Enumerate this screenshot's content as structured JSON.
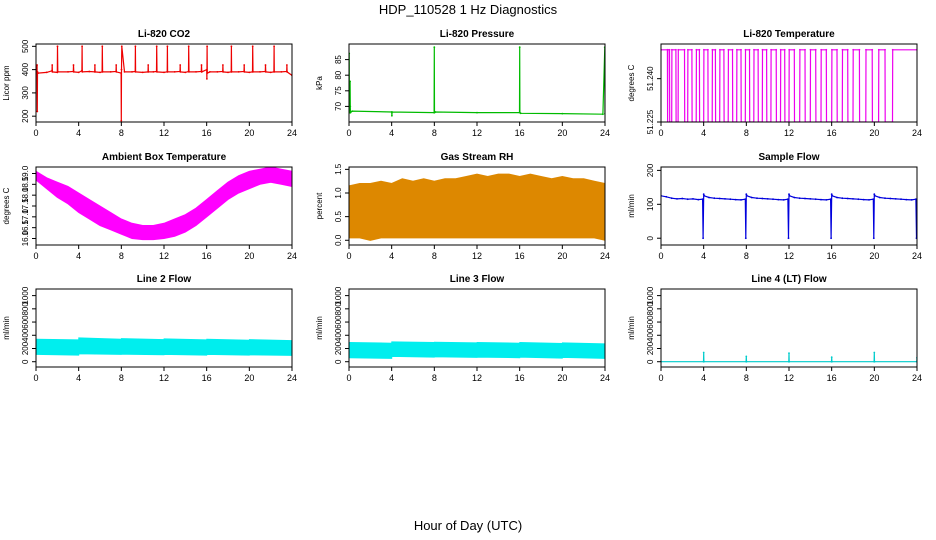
{
  "title": "HDP_110528 1 Hz Diagnostics",
  "xlabel": "Hour of Day (UTC)",
  "chart_data": [
    {
      "type": "line",
      "title": "Li-820 CO2",
      "ylabel": "Licor ppm",
      "color": "#ee0000",
      "xlim": [
        0,
        24
      ],
      "xticks": [
        0,
        4,
        8,
        12,
        16,
        20,
        24
      ],
      "ylim": [
        175,
        510
      ],
      "yticks": [
        200,
        300,
        400,
        500
      ],
      "series": [
        {
          "x": [
            0,
            0.1,
            0.12,
            0.14,
            0.2,
            1,
            1.5,
            1.52,
            1.54,
            2,
            2.02,
            2.04,
            3,
            3.5,
            3.52,
            3.54,
            4,
            4.3,
            4.32,
            4.34,
            5,
            5.5,
            5.52,
            5.54,
            6,
            6.2,
            6.22,
            6.24,
            7,
            7.5,
            7.52,
            7.54,
            7.98,
            8,
            8.02,
            8.04,
            8.3,
            9,
            9.3,
            9.32,
            9.34,
            10,
            10.5,
            10.52,
            10.54,
            11,
            11.3,
            11.32,
            11.34,
            12,
            12.3,
            12.32,
            12.34,
            13,
            13.5,
            13.52,
            13.54,
            14,
            14.3,
            14.32,
            14.34,
            15,
            15.5,
            15.52,
            15.54,
            16,
            16.02,
            16.04,
            16.06,
            16.3,
            17,
            17.5,
            17.52,
            17.54,
            18,
            18.3,
            18.32,
            18.34,
            19,
            19.5,
            19.52,
            19.54,
            20,
            20.3,
            20.32,
            20.34,
            21,
            21.5,
            21.52,
            21.54,
            22,
            22.3,
            22.32,
            22.34,
            23,
            23.5,
            23.52,
            23.54,
            24
          ],
          "y": [
            390,
            420,
            220,
            390,
            385,
            388,
            395,
            420,
            390,
            388,
            500,
            390,
            390,
            392,
            420,
            390,
            388,
            395,
            500,
            390,
            392,
            390,
            420,
            390,
            388,
            390,
            500,
            390,
            390,
            392,
            420,
            390,
            385,
            180,
            400,
            500,
            390,
            390,
            392,
            500,
            390,
            388,
            390,
            420,
            390,
            390,
            392,
            500,
            390,
            388,
            390,
            500,
            390,
            390,
            392,
            420,
            390,
            388,
            392,
            500,
            390,
            390,
            392,
            420,
            390,
            400,
            360,
            500,
            385,
            390,
            390,
            392,
            420,
            390,
            388,
            390,
            500,
            390,
            390,
            392,
            420,
            390,
            388,
            390,
            500,
            390,
            390,
            392,
            420,
            390,
            388,
            390,
            500,
            390,
            390,
            392,
            420,
            390,
            375
          ]
        }
      ]
    },
    {
      "type": "line",
      "title": "Li-820 Pressure",
      "ylabel": "kPa",
      "color": "#00bb00",
      "xlim": [
        0,
        24
      ],
      "xticks": [
        0,
        4,
        8,
        12,
        16,
        20,
        24
      ],
      "ylim": [
        65,
        90
      ],
      "yticks": [
        70,
        75,
        80,
        85
      ],
      "series": [
        {
          "x": [
            0,
            0.02,
            0.04,
            0.06,
            0.1,
            0.12,
            0.14,
            0.3,
            4,
            4.02,
            4.04,
            7.98,
            8,
            8.02,
            8.1,
            12,
            15.98,
            16,
            16.02,
            16.1,
            20,
            23.8,
            23.98,
            24
          ],
          "y": [
            68,
            87,
            68,
            68,
            78,
            70,
            68,
            68.5,
            68.2,
            67,
            68.2,
            68,
            89,
            68,
            68.2,
            68,
            68,
            89,
            68,
            67.8,
            67.7,
            67.5,
            89,
            67.6
          ]
        }
      ]
    },
    {
      "type": "line",
      "title": "Li-820 Temperature",
      "ylabel": "degrees C",
      "color": "#ee00ee",
      "xlim": [
        0,
        24
      ],
      "xticks": [
        0,
        4,
        8,
        12,
        16,
        20,
        24
      ],
      "ylim": [
        51.225,
        51.252
      ],
      "yticks": [
        51.225,
        51.24
      ],
      "ytick_labels": [
        "51.225",
        "51.240"
      ],
      "series": [
        {
          "x": [
            0,
            0.6,
            0.62,
            0.64,
            0.8,
            0.82,
            1,
            1.02,
            1.4,
            1.42,
            1.6,
            1.62,
            2.2,
            2.22,
            2.5,
            2.52,
            2.9,
            2.92,
            3.3,
            3.32,
            3.6,
            3.62,
            4,
            4.02,
            4.4,
            4.42,
            4.8,
            4.82,
            5.1,
            5.12,
            5.5,
            5.52,
            5.9,
            5.92,
            6.3,
            6.32,
            6.7,
            6.72,
            7.1,
            7.12,
            7.5,
            7.52,
            7.9,
            7.92,
            8.3,
            8.32,
            8.7,
            8.72,
            9.1,
            9.12,
            9.5,
            9.52,
            9.9,
            9.92,
            10.3,
            10.32,
            10.8,
            10.82,
            11.2,
            11.22,
            11.6,
            11.62,
            12,
            12.02,
            12.5,
            12.52,
            13,
            13.02,
            13.5,
            13.52,
            14,
            14.02,
            14.5,
            14.52,
            15,
            15.02,
            15.5,
            15.52,
            16,
            16.02,
            16.5,
            16.52,
            17,
            17.02,
            17.5,
            17.52,
            18,
            18.02,
            18.6,
            18.62,
            19.2,
            19.22,
            19.8,
            19.82,
            20.4,
            20.42,
            21,
            21.02,
            21.7,
            21.72,
            24
          ],
          "y": [
            51.25,
            51.25,
            51.225,
            51.25,
            51.25,
            51.225,
            51.225,
            51.25,
            51.25,
            51.225,
            51.225,
            51.25,
            51.25,
            51.225,
            51.225,
            51.25,
            51.25,
            51.225,
            51.225,
            51.25,
            51.25,
            51.225,
            51.225,
            51.25,
            51.25,
            51.225,
            51.225,
            51.25,
            51.25,
            51.225,
            51.225,
            51.25,
            51.25,
            51.225,
            51.225,
            51.25,
            51.25,
            51.225,
            51.225,
            51.25,
            51.25,
            51.225,
            51.225,
            51.25,
            51.25,
            51.225,
            51.225,
            51.25,
            51.25,
            51.225,
            51.225,
            51.25,
            51.25,
            51.225,
            51.225,
            51.25,
            51.25,
            51.225,
            51.225,
            51.25,
            51.25,
            51.225,
            51.225,
            51.25,
            51.25,
            51.225,
            51.225,
            51.25,
            51.25,
            51.225,
            51.225,
            51.25,
            51.25,
            51.225,
            51.225,
            51.25,
            51.25,
            51.225,
            51.225,
            51.25,
            51.25,
            51.225,
            51.225,
            51.25,
            51.25,
            51.225,
            51.225,
            51.25,
            51.25,
            51.225,
            51.225,
            51.25,
            51.25,
            51.225,
            51.225,
            51.25,
            51.25,
            51.225,
            51.225,
            51.25,
            51.25
          ]
        }
      ]
    },
    {
      "type": "area",
      "title": "Ambient Box Temperature",
      "ylabel": "degrees C",
      "color": "#ff00ff",
      "xlim": [
        0,
        24
      ],
      "xticks": [
        0,
        4,
        8,
        12,
        16,
        20,
        24
      ],
      "ylim": [
        15.7,
        19.3
      ],
      "yticks": [
        16.0,
        16.5,
        17.0,
        17.5,
        18.0,
        18.5,
        19.0
      ],
      "ytick_labels": [
        "16.0",
        "16.5",
        "17.0",
        "17.5",
        "18.0",
        "18.5",
        "19.0"
      ],
      "series": [
        {
          "x": [
            0,
            1,
            2,
            3,
            4,
            5,
            6,
            7,
            8,
            9,
            10,
            11,
            12,
            13,
            14,
            15,
            16,
            17,
            18,
            19,
            20,
            21,
            22,
            23,
            24
          ],
          "upper": [
            19.1,
            18.8,
            18.6,
            18.4,
            18.1,
            17.8,
            17.5,
            17.2,
            16.9,
            16.7,
            16.6,
            16.6,
            16.7,
            16.9,
            17.1,
            17.4,
            17.8,
            18.2,
            18.6,
            18.9,
            19.1,
            19.2,
            19.3,
            19.2,
            19.1
          ],
          "lower": [
            18.7,
            18.3,
            17.9,
            17.6,
            17.2,
            16.9,
            16.6,
            16.4,
            16.2,
            16.0,
            15.95,
            15.95,
            16.0,
            16.1,
            16.3,
            16.6,
            17.0,
            17.4,
            17.8,
            18.1,
            18.3,
            18.5,
            18.6,
            18.5,
            18.4
          ]
        }
      ]
    },
    {
      "type": "area",
      "title": "Gas Stream RH",
      "ylabel": "percent",
      "color": "#dd8800",
      "xlim": [
        0,
        24
      ],
      "xticks": [
        0,
        4,
        8,
        12,
        16,
        20,
        24
      ],
      "ylim": [
        -0.1,
        1.55
      ],
      "yticks": [
        0.0,
        0.5,
        1.0,
        1.5
      ],
      "ytick_labels": [
        "0.0",
        "0.5",
        "1.0",
        "1.5"
      ],
      "series": [
        {
          "x": [
            0,
            1,
            2,
            3,
            4,
            5,
            6,
            7,
            8,
            9,
            10,
            11,
            12,
            13,
            14,
            15,
            16,
            17,
            18,
            19,
            20,
            21,
            22,
            23,
            24
          ],
          "upper": [
            1.15,
            1.2,
            1.2,
            1.25,
            1.2,
            1.3,
            1.25,
            1.3,
            1.25,
            1.3,
            1.3,
            1.35,
            1.4,
            1.35,
            1.4,
            1.4,
            1.35,
            1.4,
            1.35,
            1.3,
            1.35,
            1.3,
            1.3,
            1.25,
            1.2
          ],
          "lower": [
            0.05,
            0.05,
            0.0,
            0.05,
            0.05,
            0.05,
            0.05,
            0.05,
            0.05,
            0.05,
            0.05,
            0.05,
            0.05,
            0.05,
            0.05,
            0.05,
            0.05,
            0.05,
            0.05,
            0.05,
            0.05,
            0.05,
            0.05,
            0.05,
            0.0
          ]
        }
      ]
    },
    {
      "type": "line",
      "title": "Sample Flow",
      "ylabel": "ml/min",
      "color": "#0000dd",
      "xlim": [
        0,
        24
      ],
      "xticks": [
        0,
        4,
        8,
        12,
        16,
        20,
        24
      ],
      "ylim": [
        -20,
        210
      ],
      "yticks": [
        0,
        100,
        200
      ],
      "series": [
        {
          "x": [
            0,
            0.5,
            1,
            1.5,
            2,
            2.5,
            3,
            3.5,
            3.9,
            3.95,
            4,
            4.05,
            4.5,
            5,
            5.5,
            6,
            6.5,
            7,
            7.5,
            7.9,
            7.95,
            8,
            8.05,
            8.5,
            9,
            9.5,
            10,
            10.5,
            11,
            11.5,
            11.9,
            11.95,
            12,
            12.05,
            12.5,
            13,
            13.5,
            14,
            14.5,
            15,
            15.5,
            15.9,
            15.95,
            16,
            16.05,
            16.5,
            17,
            17.5,
            18,
            18.5,
            19,
            19.5,
            19.9,
            19.95,
            20,
            20.05,
            20.5,
            21,
            21.5,
            22,
            22.5,
            23,
            23.5,
            23.9,
            23.95,
            24
          ],
          "y": [
            125,
            122,
            118,
            116,
            117,
            115,
            116,
            114,
            115,
            0,
            130,
            125,
            120,
            118,
            117,
            116,
            115,
            114,
            113,
            115,
            0,
            130,
            125,
            120,
            118,
            117,
            116,
            115,
            114,
            113,
            115,
            0,
            130,
            125,
            120,
            118,
            117,
            116,
            115,
            114,
            113,
            115,
            0,
            130,
            125,
            120,
            118,
            117,
            116,
            115,
            114,
            113,
            115,
            0,
            130,
            125,
            120,
            118,
            117,
            116,
            115,
            114,
            113,
            115,
            0,
            5
          ]
        }
      ]
    },
    {
      "type": "area",
      "title": "Line 2 Flow",
      "ylabel": "ml/min",
      "color": "#00eeee",
      "xlim": [
        0,
        24
      ],
      "xticks": [
        0,
        4,
        8,
        12,
        16,
        20,
        24
      ],
      "ylim": [
        -80,
        1100
      ],
      "yticks": [
        0,
        200,
        400,
        600,
        800,
        1000
      ],
      "series": [
        {
          "x": [
            0,
            4,
            4.01,
            8,
            8.01,
            12,
            12.01,
            16,
            16.01,
            20,
            20.01,
            24
          ],
          "upper": [
            340,
            330,
            360,
            340,
            350,
            335,
            345,
            330,
            340,
            325,
            335,
            320
          ],
          "lower": [
            110,
            100,
            120,
            110,
            115,
            105,
            110,
            100,
            110,
            100,
            105,
            95
          ]
        }
      ]
    },
    {
      "type": "area",
      "title": "Line 3 Flow",
      "ylabel": "ml/min",
      "color": "#00eeee",
      "xlim": [
        0,
        24
      ],
      "xticks": [
        0,
        4,
        8,
        12,
        16,
        20,
        24
      ],
      "ylim": [
        -80,
        1100
      ],
      "yticks": [
        0,
        200,
        400,
        600,
        800,
        1000
      ],
      "series": [
        {
          "x": [
            0,
            4,
            4.01,
            8,
            8.01,
            12,
            12.01,
            16,
            16.01,
            20,
            20.01,
            24
          ],
          "upper": [
            290,
            280,
            300,
            290,
            295,
            285,
            290,
            280,
            290,
            275,
            285,
            270
          ],
          "lower": [
            60,
            50,
            80,
            70,
            75,
            65,
            70,
            60,
            70,
            55,
            65,
            50
          ]
        }
      ]
    },
    {
      "type": "line",
      "title": "Line 4 (LT) Flow",
      "ylabel": "ml/min",
      "color": "#00cccc",
      "xlim": [
        0,
        24
      ],
      "xticks": [
        0,
        4,
        8,
        12,
        16,
        20,
        24
      ],
      "ylim": [
        -80,
        1100
      ],
      "yticks": [
        0,
        200,
        400,
        600,
        800,
        1000
      ],
      "series": [
        {
          "x": [
            0,
            3.98,
            4,
            4.02,
            7.98,
            8,
            8.02,
            11.98,
            12,
            12.02,
            15.98,
            16,
            16.02,
            19.98,
            20,
            20.02,
            23.98,
            24
          ],
          "y": [
            0,
            0,
            140,
            0,
            0,
            80,
            0,
            0,
            130,
            0,
            0,
            70,
            0,
            0,
            140,
            0,
            0,
            60
          ]
        }
      ]
    }
  ]
}
